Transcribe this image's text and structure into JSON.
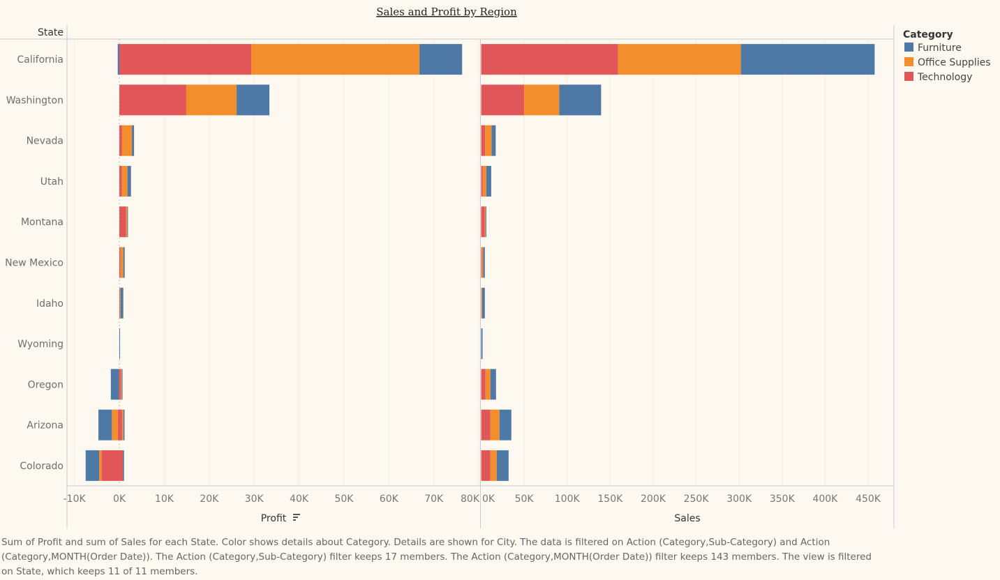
{
  "title": "Sales and Profit by Region",
  "row_header": "State",
  "legend": {
    "title": "Category",
    "items": [
      {
        "label": "Furniture",
        "color": "#4e79a7"
      },
      {
        "label": "Office Supplies",
        "color": "#f28e2b"
      },
      {
        "label": "Technology",
        "color": "#e15759"
      }
    ]
  },
  "footer": "Sum of Profit and sum of Sales for each State.  Color shows details about Category.  Details are shown for City. The data is filtered on Action (Category,Sub-Category) and Action (Category,MONTH(Order Date)). The Action (Category,Sub-Category) filter keeps 17 members. The Action (Category,MONTH(Order Date)) filter keeps 143 members. The view is filtered on State, which keeps 11 of 11 members.",
  "chart_data": [
    {
      "type": "bar",
      "orientation": "horizontal",
      "stacked": true,
      "xlabel": "Profit",
      "sort_icon": "sort-descending-icon",
      "xlim": [
        -11500,
        80300
      ],
      "ticks": [
        "-10K",
        "0K",
        "10K",
        "20K",
        "30K",
        "40K",
        "50K",
        "60K",
        "70K",
        "80K"
      ],
      "tick_values": [
        -10000,
        0,
        10000,
        20000,
        30000,
        40000,
        50000,
        60000,
        70000,
        80000
      ],
      "grid": true,
      "categories": [
        "California",
        "Washington",
        "Nevada",
        "Utah",
        "Montana",
        "New Mexico",
        "Idaho",
        "Wyoming",
        "Oregon",
        "Arizona",
        "Colorado"
      ],
      "stack_order": [
        "Technology",
        "Office Supplies",
        "Furniture"
      ],
      "series": [
        {
          "name": "Technology",
          "positive": [
            29400,
            14900,
            600,
            570,
            1500,
            260,
            100,
            0,
            350,
            600,
            800
          ],
          "negative": [
            0,
            0,
            0,
            0,
            0,
            0,
            0,
            0,
            -100,
            -360,
            -4000
          ]
        },
        {
          "name": "Office Supplies",
          "positive": [
            37400,
            11200,
            2200,
            1240,
            260,
            620,
            160,
            0,
            200,
            300,
            0
          ],
          "negative": [
            0,
            0,
            0,
            0,
            0,
            0,
            0,
            0,
            0,
            -1300,
            -500
          ]
        },
        {
          "name": "Furniture",
          "positive": [
            9500,
            7300,
            470,
            780,
            160,
            310,
            620,
            100,
            100,
            250,
            250
          ],
          "negative": [
            -360,
            0,
            0,
            0,
            0,
            0,
            0,
            0,
            -1800,
            -3000,
            -3000
          ]
        }
      ]
    },
    {
      "type": "bar",
      "orientation": "horizontal",
      "stacked": true,
      "xlabel": "Sales",
      "xlim": [
        0,
        480000
      ],
      "ticks": [
        "0K",
        "50K",
        "100K",
        "150K",
        "200K",
        "250K",
        "300K",
        "350K",
        "400K",
        "450K"
      ],
      "tick_values": [
        0,
        50000,
        100000,
        150000,
        200000,
        250000,
        300000,
        350000,
        400000,
        450000
      ],
      "grid": true,
      "categories": [
        "California",
        "Washington",
        "Nevada",
        "Utah",
        "Montana",
        "New Mexico",
        "Idaho",
        "Wyoming",
        "Oregon",
        "Arizona",
        "Colorado"
      ],
      "stack_order": [
        "Technology",
        "Office Supplies",
        "Furniture"
      ],
      "series": [
        {
          "name": "Technology",
          "values": [
            159000,
            50000,
            4700,
            1900,
            4100,
            800,
            300,
            0,
            5100,
            10800,
            10800
          ]
        },
        {
          "name": "Office Supplies",
          "values": [
            143000,
            40700,
            7500,
            4100,
            1100,
            1600,
            800,
            0,
            5700,
            10500,
            7300
          ]
        },
        {
          "name": "Furniture",
          "values": [
            155600,
            48800,
            4700,
            5700,
            800,
            1900,
            3200,
            1600,
            6500,
            13800,
            13800
          ]
        }
      ]
    }
  ]
}
